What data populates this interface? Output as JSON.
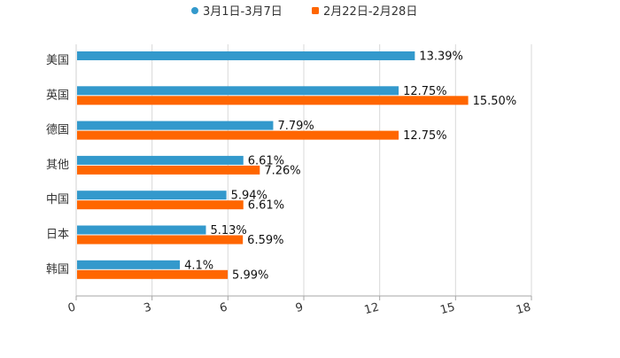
{
  "chart_data": {
    "type": "bar",
    "orientation": "horizontal",
    "categories": [
      "美国",
      "英国",
      "德国",
      "其他",
      "中国",
      "日本",
      "韩国"
    ],
    "series": [
      {
        "name": "3月1日-3月7日",
        "color": "#3399cc",
        "values": [
          13.39,
          12.75,
          7.79,
          6.61,
          5.94,
          5.13,
          4.1
        ],
        "labels": [
          "13.39%",
          "12.75%",
          "7.79%",
          "6.61%",
          "5.94%",
          "5.13%",
          "4.1%"
        ]
      },
      {
        "name": "2月22日-2月28日",
        "color": "#ff6600",
        "values": [
          null,
          15.5,
          12.75,
          7.26,
          6.61,
          6.59,
          5.99
        ],
        "labels": [
          null,
          "15.50%",
          "12.75%",
          "7.26%",
          "6.61%",
          "6.59%",
          "5.99%"
        ]
      }
    ],
    "xlim": [
      0,
      18
    ],
    "xticks": [
      "0",
      "3",
      "6",
      "9",
      "12",
      "15",
      "18"
    ],
    "grid": true,
    "legend": "top-center",
    "title": "",
    "xlabel": "",
    "ylabel": ""
  }
}
